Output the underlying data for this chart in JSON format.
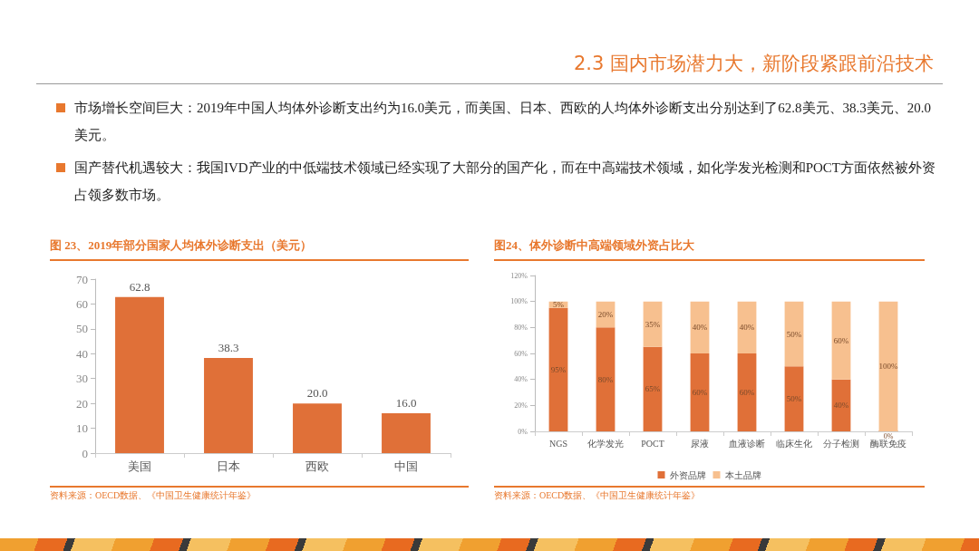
{
  "chart_data": [
    {
      "type": "other",
      "title": "2.3 国内市场潜力大，新阶段紧跟前沿技术",
      "annotations": [
        "市场增长空间巨大：2019年中国人均体外诊断支出约为16.0美元，而美国、日本、西欧的人均体外诊断支出分别达到了62.8美元、38.3美元、20.0美元。",
        "国产替代机遇较大：我国IVD产业的中低端技术领域已经实现了大部分的国产化，而在中高端技术领域，如化学发光检测和POCT方面依然被外资占领多数市场。"
      ]
    },
    {
      "type": "bar",
      "title": "图 23、2019年部分国家人均体外诊断支出（美元）",
      "categories": [
        "美国",
        "日本",
        "西欧",
        "中国"
      ],
      "values": [
        62.8,
        38.3,
        20.0,
        16.0
      ],
      "value_labels": [
        "62.8",
        "38.3",
        "20.0",
        "16.0"
      ],
      "color": "#e07038",
      "ylim": [
        0,
        70
      ],
      "yticks": [
        0,
        10,
        20,
        30,
        40,
        50,
        60,
        70
      ],
      "grid": false,
      "annotations": [
        "资料来源：OECD数据、《中国卫生健康统计年鉴》"
      ]
    },
    {
      "type": "bar",
      "title": "图24、体外诊断中高端领域外资占比大",
      "stacked": true,
      "categories": [
        "NGS",
        "化学发光",
        "POCT",
        "尿液",
        "血液诊断",
        "临床生化",
        "分子检测",
        "酶联免疫"
      ],
      "series": [
        {
          "name": "外资品牌",
          "color": "#e07038",
          "values": [
            95,
            80,
            65,
            60,
            60,
            50,
            40,
            0
          ],
          "value_labels": [
            "95%",
            "80%",
            "65%",
            "60%",
            "60%",
            "50%",
            "40%",
            "0%"
          ]
        },
        {
          "name": "本土品牌",
          "color": "#f7c08f",
          "values": [
            5,
            20,
            35,
            40,
            40,
            50,
            60,
            100
          ],
          "value_labels": [
            "5%",
            "20%",
            "35%",
            "40%",
            "40%",
            "50%",
            "60%",
            "100%"
          ]
        }
      ],
      "ylim": [
        0,
        120
      ],
      "yticks": [
        {
          "value": 0,
          "label": "0%"
        },
        {
          "value": 20,
          "label": "20%"
        },
        {
          "value": 40,
          "label": "40%"
        },
        {
          "value": 60,
          "label": "60%"
        },
        {
          "value": 80,
          "label": "80%"
        },
        {
          "value": 100,
          "label": "100%"
        },
        {
          "value": 120,
          "label": "120%"
        }
      ],
      "grid": false,
      "legend": "bottom",
      "annotations": [
        "资料来源：OECD数据、《中国卫生健康统计年鉴》"
      ]
    }
  ]
}
